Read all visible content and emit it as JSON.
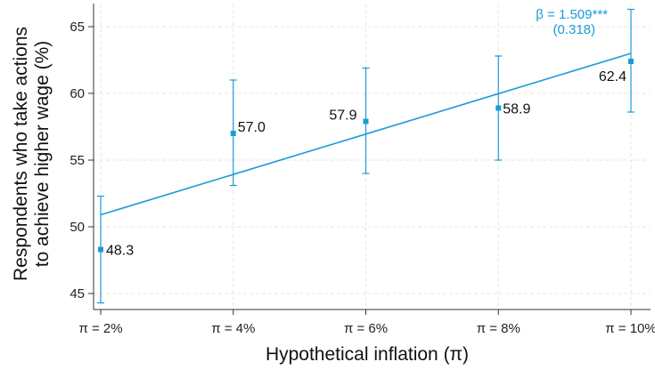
{
  "chart_data": {
    "type": "scatter",
    "x_categories": [
      "π = 2%",
      "π = 4%",
      "π = 6%",
      "π = 8%",
      "π = 10%"
    ],
    "x_values": [
      2,
      4,
      6,
      8,
      10
    ],
    "points": [
      {
        "x": 2,
        "y": 48.3,
        "ci_low": 44.3,
        "ci_high": 52.3,
        "label": "48.3"
      },
      {
        "x": 4,
        "y": 57.0,
        "ci_low": 53.1,
        "ci_high": 61.0,
        "label": "57.0"
      },
      {
        "x": 6,
        "y": 57.9,
        "ci_low": 54.0,
        "ci_high": 61.9,
        "label": "57.9"
      },
      {
        "x": 8,
        "y": 58.9,
        "ci_low": 55.0,
        "ci_high": 62.8,
        "label": "58.9"
      },
      {
        "x": 10,
        "y": 62.4,
        "ci_low": 58.6,
        "ci_high": 66.3,
        "label": "62.4"
      }
    ],
    "fit_line": {
      "x": [
        2,
        10
      ],
      "y": [
        50.9,
        63.0
      ]
    },
    "annotation": {
      "line1": "β = 1.509***",
      "line2": "(0.318)"
    },
    "xlabel": "Hypothetical inflation (π)",
    "ylabel_line1": "Respondents who take actions",
    "ylabel_line2": "to achieve higher wage (%)",
    "yticks": [
      45,
      50,
      55,
      60,
      65
    ],
    "ylim": [
      44,
      67
    ],
    "grid": true,
    "colors": {
      "series": "#1a9bd7",
      "text": "#111111",
      "grid": "#e6e6e6",
      "axis": "#333333"
    }
  }
}
